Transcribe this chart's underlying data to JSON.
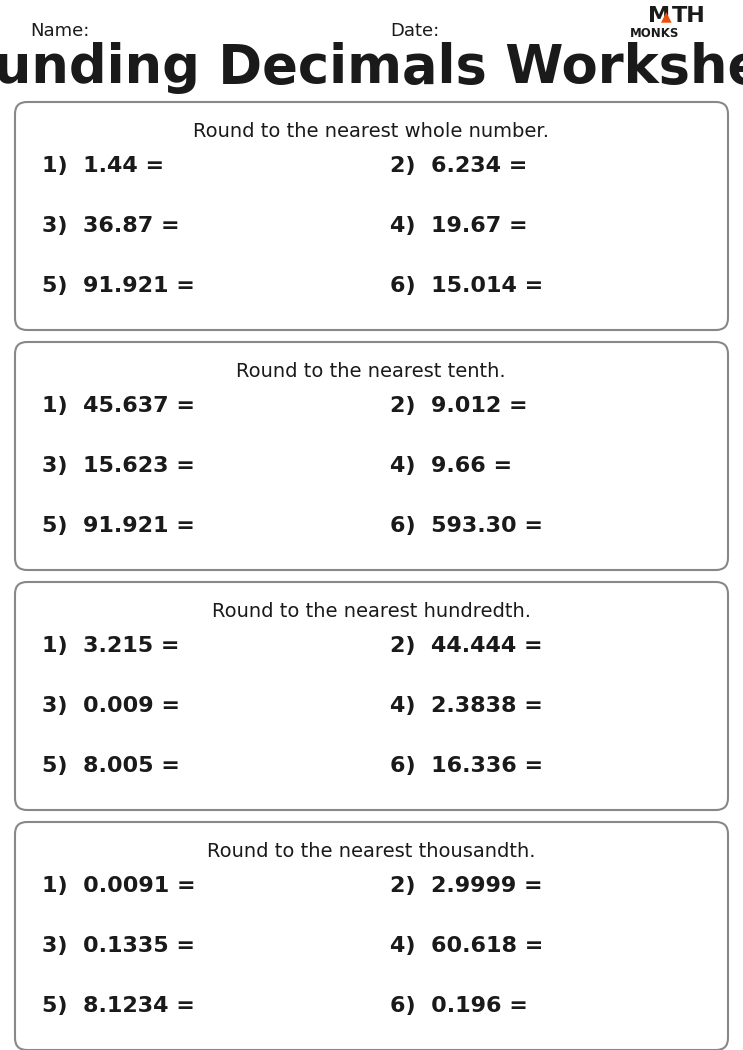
{
  "title": "Rounding Decimals Worksheet",
  "name_label": "Name:",
  "date_label": "Date:",
  "bg_color": "#ffffff",
  "text_color": "#1a1a1a",
  "box_sections": [
    {
      "heading": "Round to the nearest whole number.",
      "problems": [
        [
          "1)  1.44 =",
          "2)  6.234 ="
        ],
        [
          "3)  36.87 =",
          "4)  19.67 ="
        ],
        [
          "5)  91.921 =",
          "6)  15.014 ="
        ]
      ]
    },
    {
      "heading": "Round to the nearest tenth.",
      "problems": [
        [
          "1)  45.637 =",
          "2)  9.012 ="
        ],
        [
          "3)  15.623 =",
          "4)  9.66 ="
        ],
        [
          "5)  91.921 =",
          "6)  593.30 ="
        ]
      ]
    },
    {
      "heading": "Round to the nearest hundredth.",
      "problems": [
        [
          "1)  3.215 =",
          "2)  44.444 ="
        ],
        [
          "3)  0.009 =",
          "4)  2.3838 ="
        ],
        [
          "5)  8.005 =",
          "6)  16.336 ="
        ]
      ]
    },
    {
      "heading": "Round to the nearest thousandth.",
      "problems": [
        [
          "1)  0.0091 =",
          "2)  2.9999 ="
        ],
        [
          "3)  0.1335 =",
          "4)  60.618 ="
        ],
        [
          "5)  8.1234 =",
          "6)  0.196 ="
        ]
      ]
    }
  ],
  "logo_color": "#e8500a",
  "logo_sub": "MONKS",
  "title_fontsize": 38,
  "heading_fontsize": 14,
  "problem_fontsize": 16,
  "header_fontsize": 13
}
